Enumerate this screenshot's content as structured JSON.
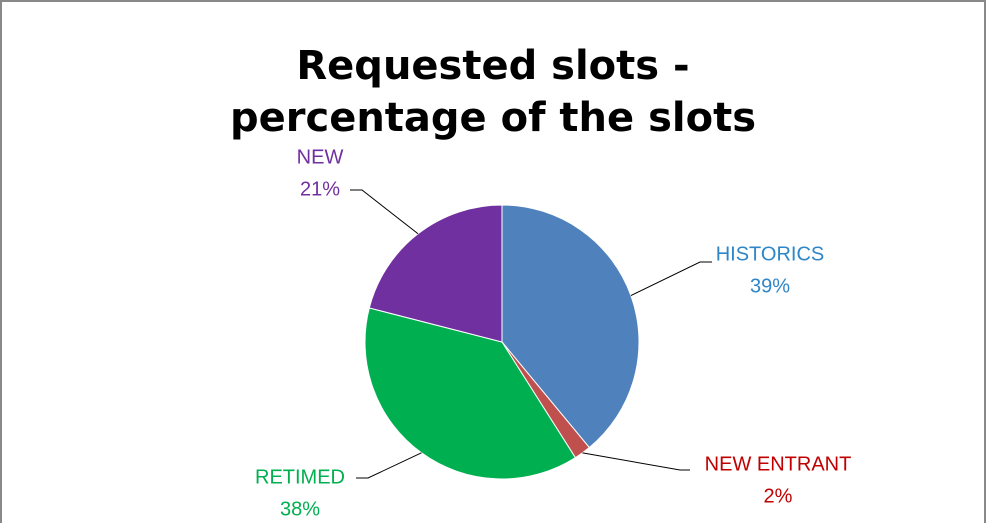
{
  "chart_data": {
    "type": "pie",
    "title": "Requested slots - percentage of the slots",
    "categories": [
      "HISTORICS",
      "NEW ENTRANT",
      "RETIMED",
      "NEW"
    ],
    "values": [
      39,
      2,
      38,
      21
    ],
    "value_labels": [
      "39%",
      "2%",
      "38%",
      "21%"
    ],
    "colors": [
      "#4f81bd",
      "#c0504d",
      "#00b050",
      "#7030a0"
    ],
    "label_colors": [
      "#2e86c8",
      "#c00000",
      "#00b050",
      "#7030a0"
    ]
  }
}
